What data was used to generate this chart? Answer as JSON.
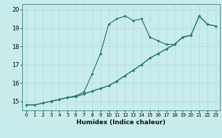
{
  "title": "",
  "xlabel": "Humidex (Indice chaleur)",
  "ylabel": "",
  "bg_color": "#c8ecec",
  "grid_color": "#b0d8d8",
  "line_color": "#2a7a6a",
  "xlim": [
    -0.5,
    23.5
  ],
  "ylim": [
    14.5,
    20.3
  ],
  "xticks": [
    0,
    1,
    2,
    3,
    4,
    5,
    6,
    7,
    8,
    9,
    10,
    11,
    12,
    13,
    14,
    15,
    16,
    17,
    18,
    19,
    20,
    21,
    22,
    23
  ],
  "yticks": [
    15,
    16,
    17,
    18,
    19,
    20
  ],
  "series1": [
    [
      0,
      14.8
    ],
    [
      1,
      14.8
    ],
    [
      2,
      14.9
    ],
    [
      3,
      15.0
    ],
    [
      4,
      15.1
    ],
    [
      5,
      15.2
    ],
    [
      6,
      15.3
    ],
    [
      7,
      15.5
    ],
    [
      8,
      16.5
    ],
    [
      9,
      17.6
    ],
    [
      10,
      19.2
    ],
    [
      11,
      19.5
    ],
    [
      12,
      19.65
    ],
    [
      13,
      19.4
    ],
    [
      14,
      19.5
    ],
    [
      15,
      18.5
    ],
    [
      16,
      18.3
    ],
    [
      17,
      18.1
    ],
    [
      18,
      18.1
    ],
    [
      19,
      18.5
    ],
    [
      20,
      18.6
    ],
    [
      21,
      19.65
    ],
    [
      22,
      19.2
    ],
    [
      23,
      19.1
    ]
  ],
  "series2": [
    [
      0,
      14.8
    ],
    [
      1,
      14.8
    ],
    [
      2,
      14.9
    ],
    [
      3,
      15.0
    ],
    [
      4,
      15.1
    ],
    [
      5,
      15.2
    ],
    [
      6,
      15.25
    ],
    [
      7,
      15.4
    ],
    [
      8,
      15.55
    ],
    [
      9,
      15.7
    ],
    [
      10,
      15.85
    ],
    [
      11,
      16.1
    ],
    [
      12,
      16.4
    ],
    [
      13,
      16.7
    ],
    [
      14,
      17.0
    ],
    [
      15,
      17.35
    ],
    [
      16,
      17.6
    ],
    [
      17,
      17.85
    ],
    [
      18,
      18.1
    ],
    [
      19,
      18.5
    ],
    [
      20,
      18.6
    ],
    [
      21,
      19.65
    ],
    [
      22,
      19.2
    ],
    [
      23,
      19.1
    ]
  ],
  "series3": [
    [
      3,
      15.0
    ],
    [
      4,
      15.1
    ],
    [
      5,
      15.2
    ],
    [
      6,
      15.25
    ],
    [
      7,
      15.4
    ],
    [
      8,
      15.55
    ],
    [
      9,
      15.7
    ],
    [
      10,
      15.85
    ],
    [
      11,
      16.1
    ],
    [
      12,
      16.4
    ],
    [
      13,
      16.7
    ],
    [
      14,
      17.0
    ],
    [
      15,
      17.35
    ],
    [
      16,
      17.6
    ],
    [
      17,
      17.85
    ],
    [
      18,
      18.1
    ],
    [
      19,
      18.5
    ],
    [
      20,
      18.6
    ]
  ]
}
